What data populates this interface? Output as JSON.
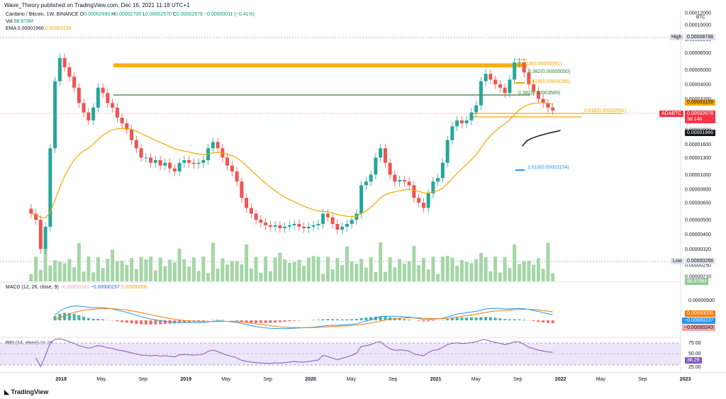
{
  "header": {
    "published": "Wave_Theory published on TradingView.com, Dec 16, 2021 11:18 UTC+1"
  },
  "legend": {
    "symbol": "Cardano / Bitcoin, 1W, BINANCE",
    "o_label": "O",
    "o": "0.00002690",
    "h_label": "H",
    "h": "0.00002705",
    "l_label": "L",
    "l": "0.00002570",
    "c_label": "C",
    "c": "0.00002678",
    "change": "−0.00000011 (−0.41%)",
    "vol_label": "Vol",
    "vol": "88.878M",
    "ema_label": "EMA",
    "ema_a": "0.00001966",
    "ema_b": "0.00003159"
  },
  "macd_legend": {
    "label": "MACD (12, 26, close, 9)",
    "hist": "−0.00000243",
    "macd": "−0.00000237",
    "signal": "0.00000006"
  },
  "rsi_legend": {
    "label": "RSI (14, close)",
    "value": "38.29"
  },
  "price_axis": {
    "unit": "BTC",
    "ticks": [
      "0.00012000",
      "0.00010000",
      "0.00008000",
      "0.00006500",
      "0.00005000",
      "0.00004000",
      "0.00003200",
      "0.00002500",
      "0.00002000",
      "0.00001600",
      "0.00001300",
      "0.00001000",
      "0.00000800",
      "0.00000650",
      "0.00000500",
      "0.00000400",
      "0.00000320",
      "0.00000250",
      "0.00000210"
    ]
  },
  "macd_axis": {
    "ticks": [
      "0.00000500"
    ]
  },
  "rsi_axis": {
    "ticks": [
      "75.00",
      "50.00",
      "25.00"
    ]
  },
  "time_axis": {
    "ticks": [
      "2018",
      "May",
      "Sep",
      "2019",
      "May",
      "Sep",
      "2020",
      "May",
      "Sep",
      "2021",
      "May",
      "Sep",
      "2022",
      "May",
      "Sep",
      "2023"
    ]
  },
  "tags": {
    "high_label": "High",
    "high": "0.00008788",
    "low_label": "Low",
    "low": "0.00000266",
    "ema_orange": "0.00003159",
    "symbol": "ADABTC",
    "price": "0.00002678",
    "countdown": "3d 14h",
    "ema_black": "0.00001966",
    "vol": "88.878M",
    "macd_signal": "0.00000006",
    "macd": "−0.00000237",
    "macd_hist": "−0.00000243",
    "rsi": "38.29"
  },
  "fib_labels": {
    "f1": "0.618(0.00005591)",
    "f2": "0.382(0.00005050)",
    "f3": "0.618(0.00004296)",
    "f4": "0.382(0.00003589)",
    "f5": "0.618(0.00002691)",
    "f6": "1.618(0.00001104)"
  },
  "logo": "TradingView",
  "chart_data": {
    "type": "candlestick",
    "title": "Cardano / Bitcoin, 1W, BINANCE",
    "x_label": "",
    "y_label": "BTC",
    "y_scale": "log",
    "ylim": [
      2.1e-06,
      0.00012
    ],
    "x_range": [
      "2017-10",
      "2023-03"
    ],
    "series": [
      {
        "name": "ADA/BTC weekly close (approximate)",
        "points": [
          [
            "2017-10-09",
            5.5e-06
          ],
          [
            "2017-10-23",
            5e-06
          ],
          [
            "2017-11-06",
            3.2e-06
          ],
          [
            "2017-11-20",
            4.5e-06
          ],
          [
            "2017-12-04",
            1.5e-05
          ],
          [
            "2017-12-18",
            4.2e-05
          ],
          [
            "2018-01-01",
            6e-05
          ],
          [
            "2018-01-15",
            5.2e-05
          ],
          [
            "2018-01-29",
            4.5e-05
          ],
          [
            "2018-02-12",
            3.8e-05
          ],
          [
            "2018-02-26",
            3e-05
          ],
          [
            "2018-03-12",
            2.6e-05
          ],
          [
            "2018-03-26",
            2.3e-05
          ],
          [
            "2018-04-09",
            2.8e-05
          ],
          [
            "2018-04-23",
            3.8e-05
          ],
          [
            "2018-05-07",
            3.5e-05
          ],
          [
            "2018-05-21",
            3e-05
          ],
          [
            "2018-06-04",
            2.8e-05
          ],
          [
            "2018-06-18",
            2.4e-05
          ],
          [
            "2018-07-02",
            2.2e-05
          ],
          [
            "2018-07-16",
            2e-05
          ],
          [
            "2018-07-30",
            1.7e-05
          ],
          [
            "2018-08-13",
            1.5e-05
          ],
          [
            "2018-08-27",
            1.3e-05
          ],
          [
            "2018-09-10",
            1.3e-05
          ],
          [
            "2018-09-24",
            1.2e-05
          ],
          [
            "2018-10-08",
            1.25e-05
          ],
          [
            "2018-10-22",
            1.15e-05
          ],
          [
            "2018-11-05",
            1.2e-05
          ],
          [
            "2018-11-19",
            1.1e-05
          ],
          [
            "2018-12-03",
            1.05e-05
          ],
          [
            "2018-12-17",
            1.2e-05
          ],
          [
            "2018-12-31",
            1.25e-05
          ],
          [
            "2019-01-14",
            1.2e-05
          ],
          [
            "2019-01-28",
            1.18e-05
          ],
          [
            "2019-02-11",
            1.2e-05
          ],
          [
            "2019-02-25",
            1.25e-05
          ],
          [
            "2019-03-11",
            1.5e-05
          ],
          [
            "2019-03-25",
            1.65e-05
          ],
          [
            "2019-04-08",
            1.5e-05
          ],
          [
            "2019-04-22",
            1.3e-05
          ],
          [
            "2019-05-06",
            1.15e-05
          ],
          [
            "2019-05-20",
            1.05e-05
          ],
          [
            "2019-06-03",
            9e-06
          ],
          [
            "2019-06-17",
            7e-06
          ],
          [
            "2019-07-01",
            6e-06
          ],
          [
            "2019-07-15",
            5.5e-06
          ],
          [
            "2019-07-29",
            5e-06
          ],
          [
            "2019-08-12",
            4.8e-06
          ],
          [
            "2019-08-26",
            4.6e-06
          ],
          [
            "2019-09-09",
            4.5e-06
          ],
          [
            "2019-09-23",
            4.6e-06
          ],
          [
            "2019-10-07",
            4.4e-06
          ],
          [
            "2019-10-21",
            4.5e-06
          ],
          [
            "2019-11-04",
            4.6e-06
          ],
          [
            "2019-11-18",
            4.7e-06
          ],
          [
            "2019-12-02",
            4.5e-06
          ],
          [
            "2019-12-16",
            4.4e-06
          ],
          [
            "2019-12-30",
            4.5e-06
          ],
          [
            "2020-01-13",
            4.6e-06
          ],
          [
            "2020-01-27",
            4.7e-06
          ],
          [
            "2020-02-10",
            5.5e-06
          ],
          [
            "2020-02-24",
            5.2e-06
          ],
          [
            "2020-03-09",
            4.7e-06
          ],
          [
            "2020-03-23",
            4.3e-06
          ],
          [
            "2020-04-06",
            4.5e-06
          ],
          [
            "2020-04-20",
            4.7e-06
          ],
          [
            "2020-05-04",
            5e-06
          ],
          [
            "2020-05-18",
            5.5e-06
          ],
          [
            "2020-06-01",
            8.5e-06
          ],
          [
            "2020-06-15",
            9e-06
          ],
          [
            "2020-06-29",
            1e-05
          ],
          [
            "2020-07-13",
            1.3e-05
          ],
          [
            "2020-07-27",
            1.5e-05
          ],
          [
            "2020-08-10",
            1.2e-05
          ],
          [
            "2020-08-24",
            1e-05
          ],
          [
            "2020-09-07",
            9e-06
          ],
          [
            "2020-09-21",
            9.2e-06
          ],
          [
            "2020-10-05",
            9e-06
          ],
          [
            "2020-10-19",
            8.5e-06
          ],
          [
            "2020-11-02",
            7e-06
          ],
          [
            "2020-11-16",
            6.5e-06
          ],
          [
            "2020-11-30",
            6e-06
          ],
          [
            "2020-12-14",
            7.5e-06
          ],
          [
            "2020-12-28",
            9e-06
          ],
          [
            "2021-01-11",
            9.5e-06
          ],
          [
            "2021-01-25",
            1.2e-05
          ],
          [
            "2021-02-08",
            1.7e-05
          ],
          [
            "2021-02-22",
            2.1e-05
          ],
          [
            "2021-03-08",
            2.3e-05
          ],
          [
            "2021-03-22",
            2.2e-05
          ],
          [
            "2021-04-05",
            2.3e-05
          ],
          [
            "2021-04-19",
            2.6e-05
          ],
          [
            "2021-05-03",
            2.9e-05
          ],
          [
            "2021-05-17",
            4.2e-05
          ],
          [
            "2021-05-31",
            4.7e-05
          ],
          [
            "2021-06-14",
            4.3e-05
          ],
          [
            "2021-06-28",
            4e-05
          ],
          [
            "2021-07-12",
            3.8e-05
          ],
          [
            "2021-07-26",
            3.5e-05
          ],
          [
            "2021-08-09",
            4.3e-05
          ],
          [
            "2021-08-23",
            5.6e-05
          ],
          [
            "2021-09-06",
            5.6e-05
          ],
          [
            "2021-09-20",
            4.8e-05
          ],
          [
            "2021-10-04",
            4e-05
          ],
          [
            "2021-10-18",
            3.6e-05
          ],
          [
            "2021-11-01",
            3.2e-05
          ],
          [
            "2021-11-15",
            3e-05
          ],
          [
            "2021-11-29",
            2.8e-05
          ],
          [
            "2021-12-13",
            2.68e-05
          ]
        ]
      }
    ],
    "horizontal_levels": [
      5.591e-05,
      5.05e-05,
      4.296e-05,
      3.589e-05,
      2.691e-05,
      1.104e-05
    ],
    "indicators": [
      "Vol",
      "EMA",
      "MACD (12, 26, close, 9)",
      "RSI (14, close)"
    ],
    "grid": false,
    "legend": "top-left"
  }
}
